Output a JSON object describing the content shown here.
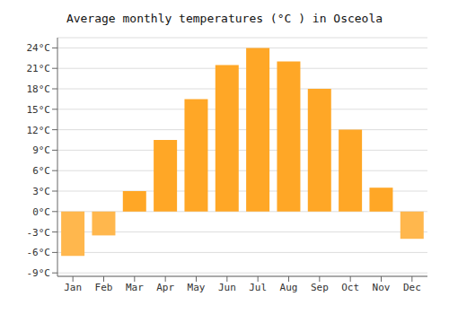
{
  "chart_data": {
    "type": "bar",
    "title": "Average monthly temperatures (°C ) in Osceola",
    "categories": [
      "Jan",
      "Feb",
      "Mar",
      "Apr",
      "May",
      "Jun",
      "Jul",
      "Aug",
      "Sep",
      "Oct",
      "Nov",
      "Dec"
    ],
    "values": [
      -6.5,
      -3.5,
      3.0,
      10.5,
      16.5,
      21.5,
      24.0,
      22.0,
      18.0,
      12.0,
      3.5,
      -4.0
    ],
    "colors": [
      "#FFB74D",
      "#FFB74D",
      "#FFA726",
      "#FFA726",
      "#FFA726",
      "#FFA726",
      "#FFA726",
      "#FFA726",
      "#FFA726",
      "#FFA726",
      "#FFA726",
      "#FFB74D"
    ],
    "ylim": [
      -9.5,
      25.5
    ],
    "yticks": [
      {
        "value": -9,
        "label": "-9°C"
      },
      {
        "value": -6,
        "label": "-6°C"
      },
      {
        "value": -3,
        "label": "-3°C"
      },
      {
        "value": 0,
        "label": "0°C"
      },
      {
        "value": 3,
        "label": "3°C"
      },
      {
        "value": 6,
        "label": "6°C"
      },
      {
        "value": 9,
        "label": "9°C"
      },
      {
        "value": 12,
        "label": "12°C"
      },
      {
        "value": 15,
        "label": "15°C"
      },
      {
        "value": 18,
        "label": "18°C"
      },
      {
        "value": 21,
        "label": "21°C"
      },
      {
        "value": 24,
        "label": "24°C"
      }
    ],
    "grid": true
  }
}
